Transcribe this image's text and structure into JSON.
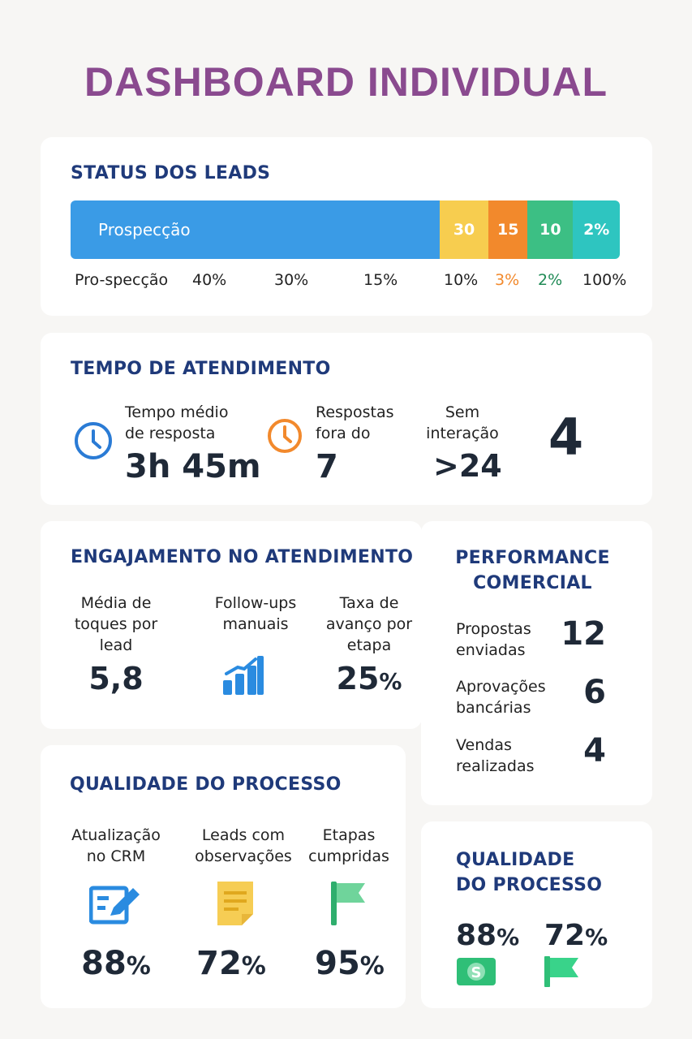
{
  "title": "DASHBOARD INDIVIDUAL",
  "status": {
    "heading": "STATUS DOS LEADS",
    "segments": [
      {
        "label": "Prospecção",
        "percent": 67.2,
        "color": "#3a9be6"
      },
      {
        "label": "30",
        "percent": 8.9,
        "color": "#f7cd4f"
      },
      {
        "label": "15",
        "percent": 7.1,
        "color": "#f2892c"
      },
      {
        "label": "10",
        "percent": 8.3,
        "color": "#3cbf84"
      },
      {
        "label": "2%",
        "percent": 8.5,
        "color": "#2ec5c0"
      }
    ],
    "legend": [
      "Pro-specção",
      "40%",
      "30%",
      "15%",
      "10%",
      "3%",
      "2%",
      "100%"
    ],
    "legend_colors": {
      "orange": "#f2892c",
      "green": "#1f8a55"
    }
  },
  "tempo": {
    "heading": "TEMPO DE ATENDIMENTO",
    "items": [
      {
        "label1": "Tempo médio",
        "label2": "de resposta",
        "value": "3h 45m",
        "icon": "clock-icon",
        "color": "#2a7bd5"
      },
      {
        "label1": "Respostas",
        "label2": "fora do",
        "value": "7",
        "icon": "clock-icon",
        "color": "#f2892c"
      },
      {
        "label1": "Sem",
        "label2": "interação",
        "value": ">24"
      }
    ],
    "side_value": "4"
  },
  "engajamento": {
    "heading": "ENGAJAMENTO NO ATENDIMENTO",
    "items": [
      {
        "label": [
          "Média de",
          "toques por",
          "lead"
        ],
        "value": "5,8"
      },
      {
        "label": [
          "Follow-ups",
          "manuais"
        ],
        "icon": "bar-chart-icon"
      },
      {
        "label": [
          "Taxa de",
          "avanço por",
          "etapa"
        ],
        "value": "25",
        "unit": "%"
      }
    ]
  },
  "performance": {
    "heading": [
      "PERFORMANCE",
      "COMERCIAL"
    ],
    "rows": [
      {
        "label": [
          "Propostas",
          "enviadas"
        ],
        "value": "12"
      },
      {
        "label": [
          "Aprovações",
          "bancárias"
        ],
        "value": "6"
      },
      {
        "label": [
          "Vendas",
          "realizadas"
        ],
        "value": "4"
      }
    ]
  },
  "qualidade": {
    "heading": "QUALIDADE DO PROCESSO",
    "items": [
      {
        "label": [
          "Atualização",
          "no CRM"
        ],
        "icon": "edit-icon",
        "value": "88",
        "unit": "%"
      },
      {
        "label": [
          "Leads com",
          "observações"
        ],
        "icon": "note-icon",
        "value": "72",
        "unit": "%"
      },
      {
        "label": [
          "Etapas",
          "cumpridas"
        ],
        "icon": "flag-icon",
        "value": "95",
        "unit": "%"
      }
    ]
  },
  "qualidade2": {
    "heading": [
      "QUALIDADE",
      "DO PROCESSO"
    ],
    "items": [
      {
        "value": "88",
        "unit": "%",
        "icon": "money-icon"
      },
      {
        "value": "72",
        "unit": "%",
        "icon": "flag-icon"
      }
    ]
  }
}
